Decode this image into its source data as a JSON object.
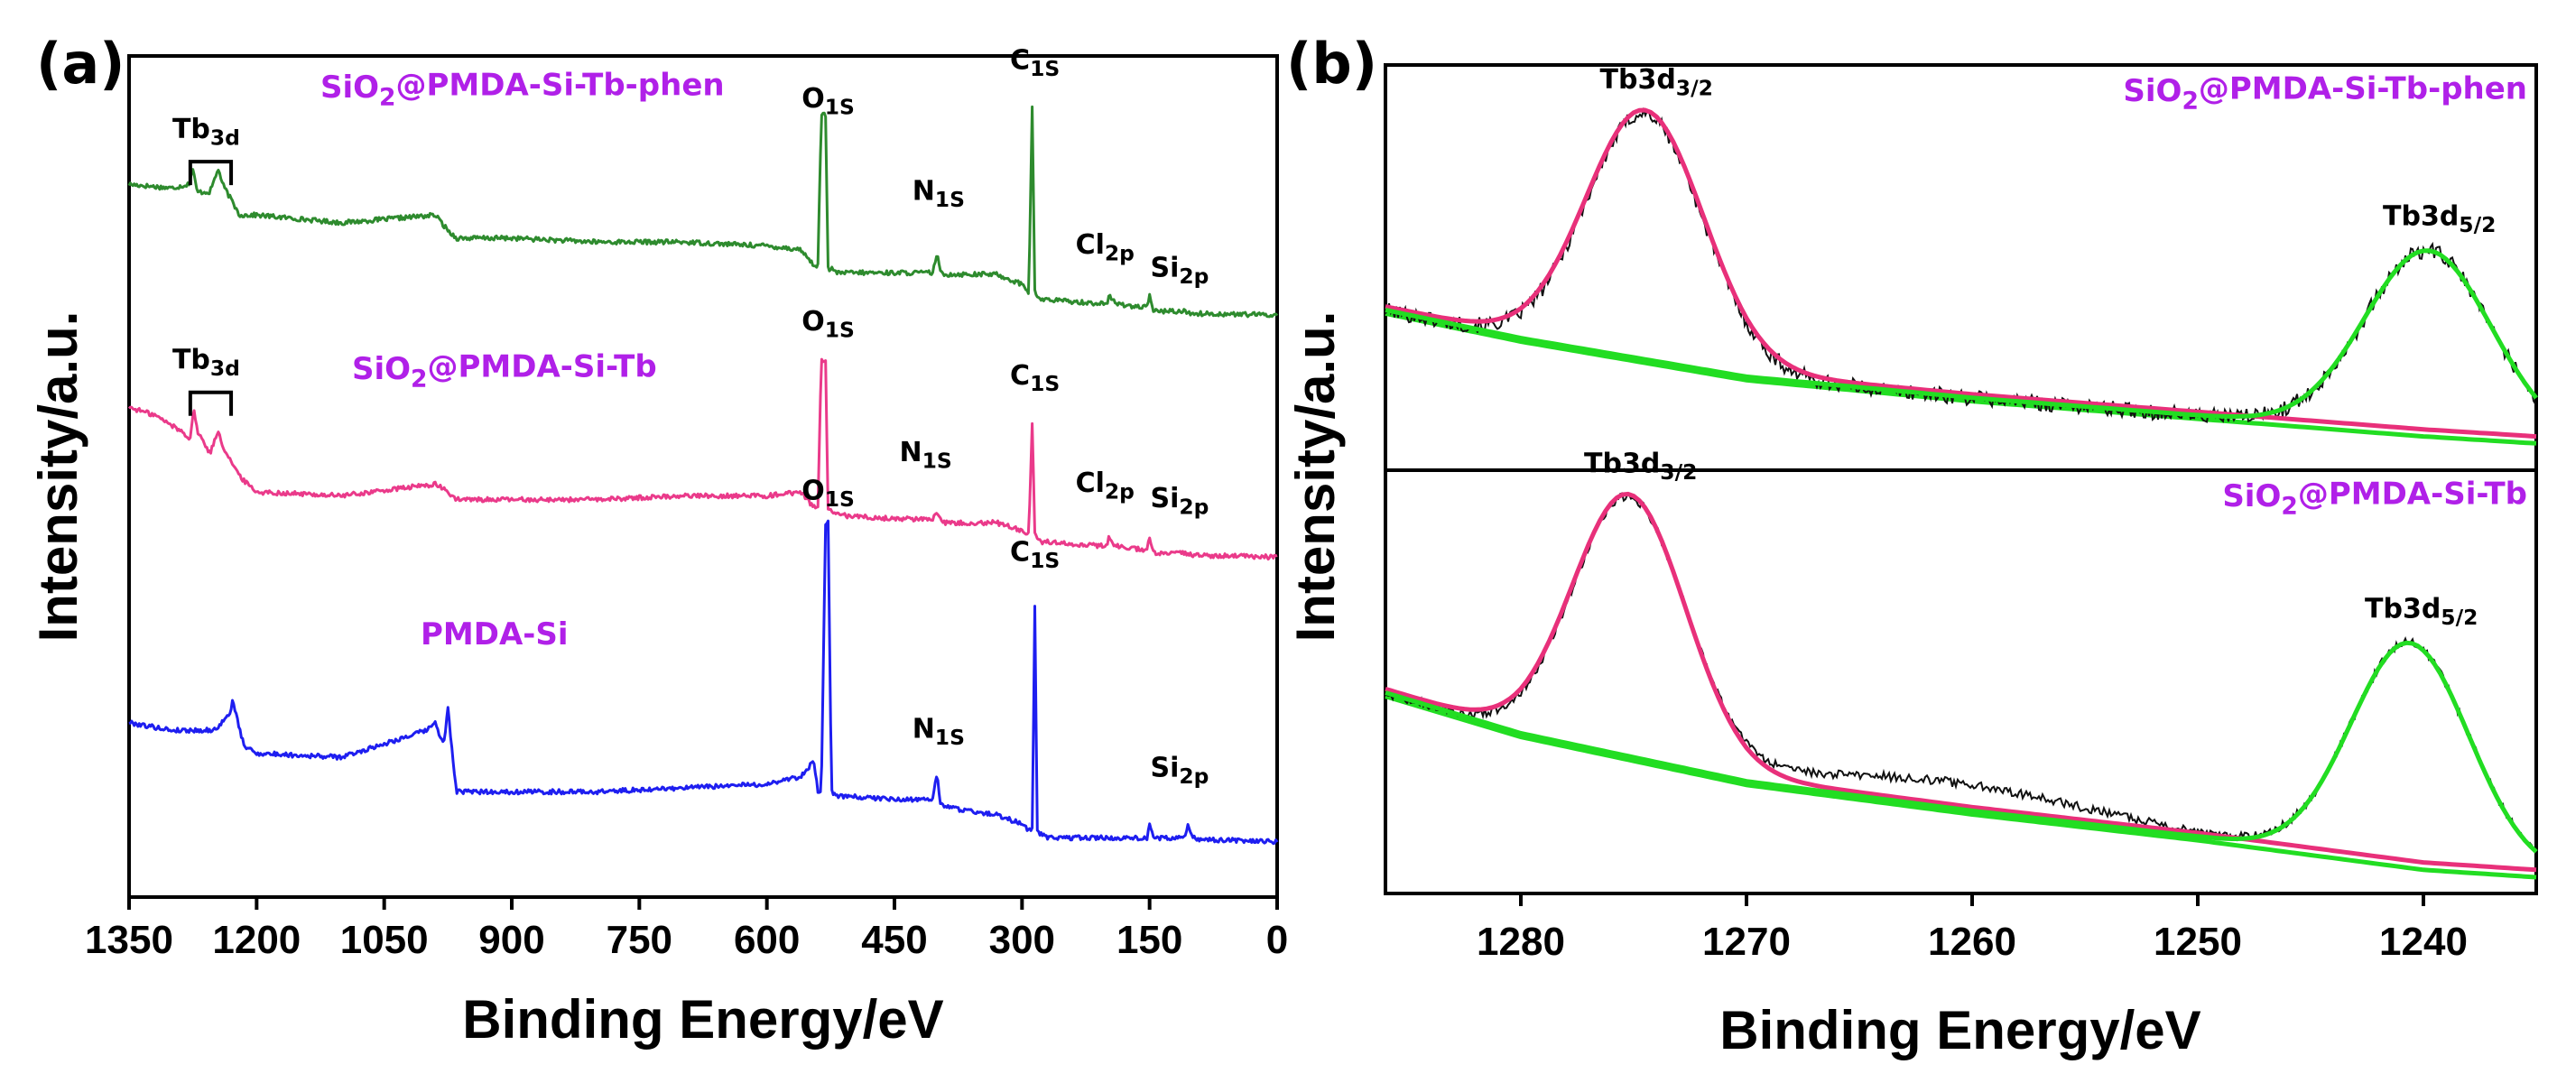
{
  "chart_data": [
    {
      "id": "a",
      "type": "line",
      "panel_label": "(a)",
      "xlabel": "Binding Energy/eV",
      "ylabel": "Intensity/a.u.",
      "xlim": [
        1350,
        0
      ],
      "x_ticks": [
        1350,
        1200,
        1050,
        900,
        750,
        600,
        450,
        300,
        150,
        0
      ],
      "y_ticks": [],
      "ylim": [
        0,
        100
      ],
      "series": [
        {
          "name": "SiO2@PMDA-Si-Tb-phen",
          "title_main": "SiO",
          "title_sub": "2",
          "title_rest": "@PMDA-Si-Tb-phen",
          "color": "#2e8b2e",
          "x": [
            1350,
            1300,
            1280,
            1275,
            1270,
            1255,
            1245,
            1240,
            1230,
            1220,
            1200,
            1100,
            990,
            975,
            965,
            900,
            800,
            700,
            600,
            560,
            545,
            540,
            536,
            531,
            528,
            524,
            520,
            450,
            405,
            400,
            396,
            390,
            330,
            300,
            292,
            288,
            285,
            282,
            278,
            270,
            210,
            200,
            198,
            190,
            160,
            153,
            150,
            145,
            110,
            100,
            0
          ],
          "y": [
            88,
            87.5,
            88,
            90,
            87,
            87,
            90,
            88,
            86,
            84,
            84,
            83,
            84,
            82,
            81,
            81,
            80.5,
            80.5,
            80,
            79.5,
            77.5,
            77.5,
            97,
            97,
            77,
            77,
            76.5,
            76.5,
            76.5,
            79,
            76.5,
            76.3,
            76.3,
            75,
            74,
            98,
            74,
            73.5,
            73,
            73,
            72.5,
            72.5,
            73.5,
            72.5,
            72,
            72,
            73.5,
            71.5,
            71.5,
            71.2,
            71
          ]
        },
        {
          "name": "SiO2@PMDA-Si-Tb",
          "title_main": "SiO",
          "title_sub": "2",
          "title_rest": "@PMDA-Si-Tb",
          "color": "#ea3a8a",
          "x": [
            1350,
            1320,
            1290,
            1278,
            1274,
            1270,
            1255,
            1245,
            1240,
            1230,
            1220,
            1200,
            1100,
            990,
            975,
            965,
            900,
            800,
            700,
            600,
            560,
            545,
            540,
            536,
            531,
            528,
            524,
            520,
            450,
            405,
            400,
            396,
            390,
            330,
            300,
            292,
            288,
            285,
            282,
            278,
            270,
            210,
            200,
            198,
            190,
            160,
            153,
            150,
            145,
            110,
            100,
            0
          ],
          "y": [
            59,
            58,
            56,
            55,
            59,
            56,
            53,
            56,
            54,
            52,
            50,
            48,
            47.5,
            49,
            48,
            47,
            47,
            47,
            47.5,
            47.5,
            48,
            46,
            46,
            65,
            65,
            45.5,
            45.5,
            45,
            44.5,
            44.5,
            45.5,
            44.5,
            44,
            44,
            43,
            42.5,
            57,
            42.5,
            42,
            41.5,
            41.5,
            41,
            41,
            42,
            41,
            40.5,
            40.5,
            42,
            40,
            40,
            39.8,
            39.5
          ]
        },
        {
          "name": "PMDA-Si",
          "title_main": "PMDA-Si",
          "title_sub": "",
          "title_rest": "",
          "color": "#1e1ef0",
          "x": [
            1350,
            1300,
            1250,
            1232,
            1228,
            1222,
            1215,
            1200,
            1100,
            1000,
            990,
            980,
            975,
            970,
            965,
            900,
            800,
            700,
            600,
            560,
            545,
            540,
            536,
            531,
            528,
            524,
            520,
            450,
            405,
            400,
            396,
            390,
            330,
            305,
            292,
            288,
            285,
            282,
            278,
            270,
            160,
            153,
            150,
            145,
            110,
            105,
            100,
            90,
            0
          ],
          "y": [
            18,
            17,
            17,
            19,
            21,
            18,
            15,
            14,
            13.5,
            17,
            18,
            15,
            20,
            14,
            9,
            9,
            9,
            9.5,
            10,
            11,
            13,
            9,
            9,
            44,
            44,
            9,
            8.5,
            8,
            8,
            11.5,
            7.5,
            7,
            6,
            5,
            4,
            4,
            33,
            4,
            3.5,
            3,
            3,
            3,
            5,
            3,
            3,
            4.5,
            3,
            2.8,
            2.5
          ]
        }
      ],
      "annotations": [
        {
          "main": "Tb",
          "sub": "3d",
          "x": 1280,
          "y": 94,
          "bracket": [
            1278,
            1230
          ]
        },
        {
          "main": "O",
          "sub": "1S",
          "x": 540,
          "y": 98
        },
        {
          "main": "N",
          "sub": "1S",
          "x": 410,
          "y": 86
        },
        {
          "main": "C",
          "sub": "1S",
          "x": 295,
          "y": 103
        },
        {
          "main": "Cl",
          "sub": "2p",
          "x": 218,
          "y": 79
        },
        {
          "main": "Si",
          "sub": "2p",
          "x": 130,
          "y": 76
        },
        {
          "main": "Tb",
          "sub": "3d",
          "x": 1280,
          "y": 64,
          "bracket": [
            1278,
            1230
          ]
        },
        {
          "main": "O",
          "sub": "1S",
          "x": 540,
          "y": 69
        },
        {
          "main": "N",
          "sub": "1S",
          "x": 425,
          "y": 52
        },
        {
          "main": "C",
          "sub": "1S",
          "x": 295,
          "y": 62
        },
        {
          "main": "Cl",
          "sub": "2p",
          "x": 218,
          "y": 48
        },
        {
          "main": "Si",
          "sub": "2p",
          "x": 130,
          "y": 46
        },
        {
          "main": "O",
          "sub": "1S",
          "x": 540,
          "y": 47
        },
        {
          "main": "C",
          "sub": "1S",
          "x": 295,
          "y": 39
        },
        {
          "main": "N",
          "sub": "1S",
          "x": 410,
          "y": 16
        },
        {
          "main": "Si",
          "sub": "2p",
          "x": 130,
          "y": 11
        }
      ]
    },
    {
      "id": "b",
      "type": "line",
      "panel_label": "(b)",
      "xlabel": "Binding Energy/eV",
      "ylabel": "Intensity/a.u.",
      "xlim": [
        1286,
        1235
      ],
      "x_ticks": [
        1280,
        1270,
        1260,
        1250,
        1240
      ],
      "subplots": [
        {
          "title_main": "SiO",
          "title_sub": "2",
          "title_rest": "@PMDA-Si-Tb-phen",
          "ylim": [
            0,
            100
          ],
          "peaks": [
            {
              "label_main": "Tb3d",
              "label_sub": "3/2",
              "center": 1274.5,
              "height": 70,
              "width": 2.6
            },
            {
              "label_main": "Tb3d",
              "label_sub": "5/2",
              "center": 1239.8,
              "height": 52,
              "width": 2.8
            }
          ],
          "baseline": {
            "x": [
              1286,
              1280,
              1270,
              1260,
              1250,
              1240,
              1235
            ],
            "y": [
              41,
              33,
              22,
              16,
              11,
              6,
              4
            ]
          },
          "noise_amplitude": 2.2
        },
        {
          "title_main": "SiO",
          "title_sub": "2",
          "title_rest": "@PMDA-Si-Tb",
          "ylim": [
            0,
            100
          ],
          "peaks": [
            {
              "label_main": "Tb3d",
              "label_sub": "3/2",
              "center": 1275.2,
              "height": 70,
              "width": 2.5
            },
            {
              "label_main": "Tb3d",
              "label_sub": "5/2",
              "center": 1240.6,
              "height": 60,
              "width": 2.6
            }
          ],
          "baseline": {
            "x": [
              1286,
              1280,
              1270,
              1260,
              1250,
              1240,
              1235
            ],
            "y": [
              50,
              39,
              26,
              18,
              11,
              3,
              1
            ]
          },
          "hump": {
            "center": 1261,
            "height": 7,
            "width": 6
          },
          "noise_amplitude": 1.2
        }
      ]
    }
  ]
}
